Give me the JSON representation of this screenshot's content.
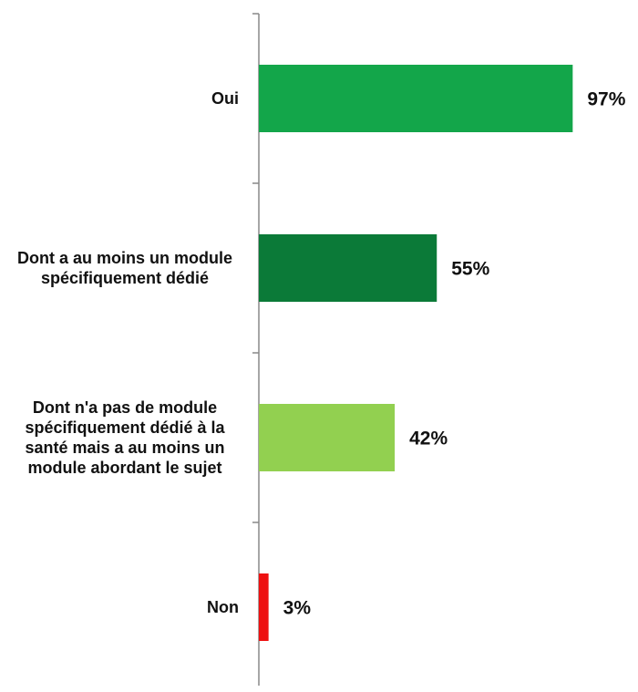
{
  "chart_data": {
    "type": "bar",
    "orientation": "horizontal",
    "categories": [
      "Oui",
      "Dont a au moins un module spécifiquement dédié",
      "Dont n'a pas de module spécifiquement dédié à la santé mais a au moins un module abordant le sujet",
      "Non"
    ],
    "values": [
      97,
      55,
      42,
      3
    ],
    "value_labels": [
      "97%",
      "55%",
      "42%",
      "3%"
    ],
    "colors": [
      "#13a64a",
      "#0b7a38",
      "#92d050",
      "#ee1111"
    ],
    "xlim": [
      0,
      100
    ]
  }
}
